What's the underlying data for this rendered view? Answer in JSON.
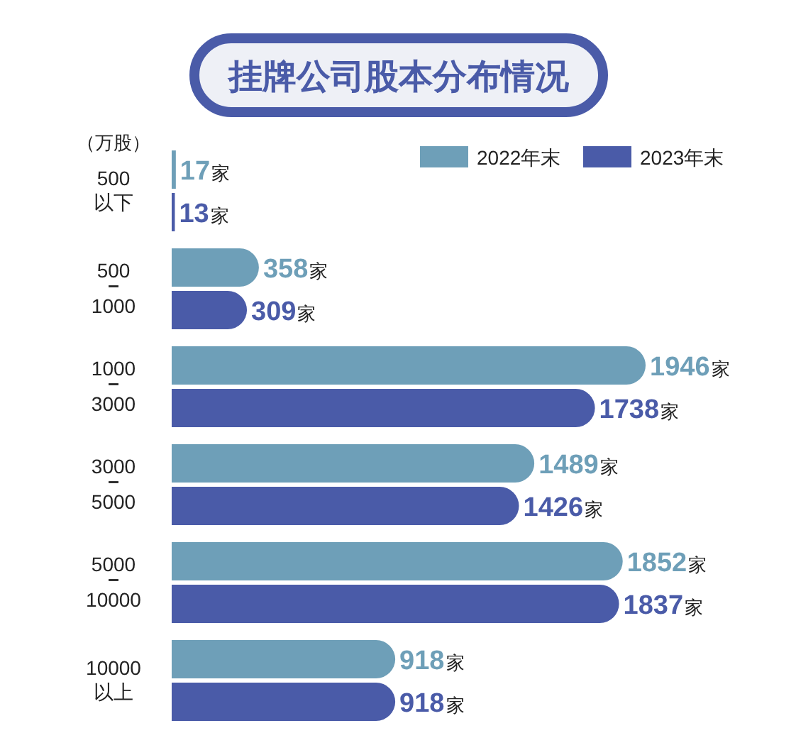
{
  "chart_data": {
    "type": "bar",
    "orientation": "horizontal",
    "title": "挂牌公司股本分布情况",
    "annotations": [
      "（万股）"
    ],
    "categories": [
      "500\n以下",
      "500\n–\n1000",
      "1000\n–\n3000",
      "3000\n–\n5000",
      "5000\n–\n10000",
      "10000\n以上"
    ],
    "legend": "top right",
    "series": [
      {
        "name": "2022年末",
        "color": "#6e9fb8",
        "values": [
          17,
          358,
          1946,
          1489,
          1852,
          918
        ],
        "value_labels": [
          "17家",
          "358家",
          "1946家",
          "1489家",
          "1852家",
          "918家"
        ]
      },
      {
        "name": "2023年末",
        "color": "#4a5ba8",
        "values": [
          13,
          309,
          1738,
          1426,
          1837,
          918
        ],
        "value_labels": [
          "13家",
          "309家",
          "1738家",
          "1426家",
          "1837家",
          "918家"
        ]
      }
    ]
  }
}
